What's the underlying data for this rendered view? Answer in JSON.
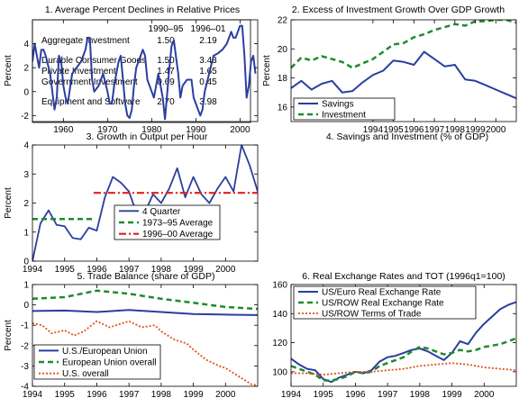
{
  "colors": {
    "blue": "#2b3ea0",
    "green": "#1f8a2e",
    "red": "#e0201b",
    "orange": "#e0501b"
  },
  "table_panel": {
    "title": "1. Average Percent Declines in Relative Prices",
    "col_headers": [
      "1990–95",
      "1996–01"
    ],
    "rows": [
      {
        "label": "Aggregate Investment",
        "values": [
          "1.50",
          "2.19"
        ]
      },
      {
        "label": "Durable Consumer Goods",
        "values": [
          "1.50",
          "3.43"
        ]
      },
      {
        "label": "Private Investment",
        "values": [
          "1.47",
          "1.65"
        ]
      },
      {
        "label": "Government Investment",
        "values": [
          "0.69",
          "0.45"
        ]
      },
      {
        "label": "Equipment and Software",
        "values": [
          "2.70",
          "3.98"
        ]
      }
    ]
  },
  "chart_data": [
    {
      "type": "table",
      "title": "1. Average Percent Declines in Relative Prices",
      "columns": [
        "",
        "1990–95",
        "1996–01"
      ],
      "rows": [
        [
          "Aggregate Investment",
          "1.50",
          "2.19"
        ],
        [
          "Durable Consumer Goods",
          "1.50",
          "3.43"
        ],
        [
          "Private Investment",
          "1.47",
          "1.65"
        ],
        [
          "Government Investment",
          "0.69",
          "0.45"
        ],
        [
          "Equipment and Software",
          "2.70",
          "3.98"
        ]
      ]
    },
    {
      "type": "line",
      "title": "2. Excess of Investment Growth Over GDP Growth",
      "xlabel": "",
      "ylabel": "Percent",
      "xlim": [
        1953,
        2004
      ],
      "ylim": [
        -2.5,
        6
      ],
      "xticks": [
        "1960",
        "1970",
        "1980",
        "1990",
        "2000"
      ],
      "yticks": [
        "-2",
        "0",
        "2",
        "4"
      ],
      "series": [
        {
          "x": [
            1953.0,
            1953.5,
            1954.0,
            1954.5,
            1955.0,
            1955.5,
            1956.0,
            1957.0,
            1957.5,
            1958.0,
            1958.5,
            1959.0,
            1959.5,
            1960.0,
            1960.5,
            1961.0,
            1962.0,
            1962.5,
            1963.0,
            1964.0,
            1964.5,
            1965.0,
            1965.5,
            1966.0,
            1966.5,
            1967.0,
            1968.0,
            1969.0,
            1970.0,
            1970.5,
            1971.0,
            1971.5,
            1972.0,
            1972.5,
            1973.0,
            1973.5,
            1974.0,
            1974.5,
            1975.0,
            1975.5,
            1976.0,
            1976.5,
            1977.0,
            1977.5,
            1978.0,
            1978.5,
            1979.0,
            1980.0,
            1980.5,
            1981.0,
            1981.5,
            1982.0,
            1982.5,
            1983.0,
            1984.0,
            1984.5,
            1985.0,
            1986.0,
            1986.5,
            1987.0,
            1988.0,
            1989.0,
            1989.5,
            1990.0,
            1990.5,
            1991.0,
            1991.5,
            1992.0,
            1993.0,
            1994.0,
            1995.0,
            1996.0,
            1997.0,
            1998.0,
            1998.5,
            1999.0,
            2000.0,
            2000.5,
            2001.0,
            2001.5,
            2002.0,
            2002.5,
            2003.0,
            2003.5
          ],
          "values": [
            2.5,
            4.0,
            3.0,
            2.0,
            3.5,
            3.5,
            3.0,
            1.5,
            0.0,
            -1.5,
            -0.5,
            3.0,
            2.5,
            0.5,
            -0.5,
            -1.0,
            1.5,
            1.8,
            2.0,
            2.5,
            3.0,
            3.5,
            4.5,
            4.5,
            1.0,
            0.0,
            0.5,
            1.5,
            0.0,
            -1.0,
            -1.0,
            0.5,
            1.5,
            2.5,
            3.0,
            1.0,
            -1.0,
            -2.0,
            -2.2,
            -1.5,
            0.5,
            2.0,
            2.5,
            3.0,
            3.5,
            3.0,
            1.0,
            0.0,
            -0.5,
            0.5,
            1.5,
            0.5,
            -0.5,
            -2.3,
            2.0,
            3.8,
            4.3,
            1.5,
            -0.5,
            0.5,
            1.0,
            1.0,
            -0.5,
            -1.0,
            -1.5,
            -2.0,
            -1.5,
            0.0,
            1.5,
            3.0,
            3.2,
            3.5,
            4.0,
            5.0,
            4.5,
            4.5,
            5.5,
            5.5,
            3.0,
            -0.5,
            0.5,
            2.5,
            3.0,
            1.5
          ]
        }
      ]
    },
    {
      "type": "line",
      "title": "3. Growth in Output per Hour",
      "xlabel": "",
      "ylabel": "Percent",
      "xlim": [
        1994,
        2001
      ],
      "ylim": [
        0,
        4
      ],
      "xticks": [
        "1994",
        "1995",
        "1996",
        "1997",
        "1998",
        "1999",
        "2000"
      ],
      "yticks": [
        "0",
        "1",
        "2",
        "3",
        "4"
      ],
      "legend": "bottom-right",
      "series": [
        {
          "name": "4 Quarter",
          "x": [
            1994.0,
            1994.25,
            1994.5,
            1994.75,
            1995.0,
            1995.25,
            1995.5,
            1995.75,
            1996.0,
            1996.25,
            1996.5,
            1996.75,
            1997.0,
            1997.25,
            1997.5,
            1997.75,
            1998.0,
            1998.25,
            1998.5,
            1998.75,
            1999.0,
            1999.25,
            1999.5,
            1999.75,
            2000.0,
            2000.25,
            2000.5,
            2000.75,
            2001.0
          ],
          "values": [
            0.0,
            1.3,
            1.75,
            1.25,
            1.2,
            0.8,
            0.75,
            1.15,
            1.05,
            2.2,
            2.9,
            2.7,
            2.4,
            1.6,
            1.7,
            2.3,
            2.0,
            2.5,
            3.2,
            2.2,
            2.9,
            2.3,
            2.0,
            2.5,
            2.9,
            2.4,
            4.0,
            3.3,
            2.4
          ]
        },
        {
          "name": "1973–95 Average",
          "x": [
            1994.0,
            1995.9
          ],
          "values": [
            1.45,
            1.45
          ]
        },
        {
          "name": "1996–00 Average",
          "x": [
            1995.9,
            2001.0
          ],
          "values": [
            2.35,
            2.35
          ]
        }
      ]
    },
    {
      "type": "line",
      "title": "4. Savings and Investment (% of GDP)",
      "xlabel": "",
      "ylabel": "Percent",
      "xlim": [
        1990,
        2001
      ],
      "ylim": [
        15,
        22
      ],
      "xticks": [
        "1994",
        "1995",
        "1996",
        "1997",
        "1998",
        "1999",
        "2000"
      ],
      "yticks": [
        "16",
        "18",
        "20",
        "22"
      ],
      "legend": "bottom-left",
      "series": [
        {
          "name": "Savings",
          "x": [
            1990,
            1990.5,
            1991,
            1991.5,
            1992,
            1992.5,
            1993,
            1993.5,
            1994,
            1994.5,
            1995,
            1995.5,
            1996,
            1996.5,
            1997,
            1997.5,
            1998,
            1998.5,
            1999,
            1999.5,
            2000,
            2000.5,
            2001
          ],
          "values": [
            17.3,
            17.8,
            17.2,
            17.6,
            17.8,
            17.0,
            17.1,
            17.7,
            18.2,
            18.5,
            19.2,
            19.1,
            18.9,
            19.8,
            19.3,
            18.8,
            18.9,
            17.9,
            17.8,
            17.5,
            17.2,
            16.9,
            16.6
          ]
        },
        {
          "name": "Investment",
          "x": [
            1990,
            1990.5,
            1991,
            1991.5,
            1992,
            1992.5,
            1993,
            1993.5,
            1994,
            1994.5,
            1995,
            1995.5,
            1996,
            1996.5,
            1997,
            1997.5,
            1998,
            1998.5,
            1999,
            1999.5,
            2000,
            2000.5,
            2001
          ],
          "values": [
            18.7,
            19.4,
            19.2,
            19.5,
            19.3,
            19.1,
            18.7,
            19.0,
            19.3,
            19.8,
            20.3,
            20.4,
            20.8,
            21.0,
            21.3,
            21.5,
            21.7,
            21.6,
            21.9,
            21.9,
            22.0,
            22.0,
            21.8
          ]
        }
      ]
    },
    {
      "type": "line",
      "title": "5. Trade Balance (share of GDP)",
      "xlabel": "",
      "ylabel": "Percent",
      "xlim": [
        1994,
        2001
      ],
      "ylim": [
        -4,
        1
      ],
      "xticks": [
        "1994",
        "1995",
        "1996",
        "1997",
        "1998",
        "1999",
        "2000"
      ],
      "yticks": [
        "-4",
        "-3",
        "-2",
        "-1",
        "0",
        "1"
      ],
      "legend": "bottom-left",
      "series": [
        {
          "name": "U.S./European Union",
          "x": [
            1994,
            1995,
            1996,
            1997,
            1998,
            1999,
            2000,
            2001
          ],
          "values": [
            -0.3,
            -0.28,
            -0.35,
            -0.25,
            -0.35,
            -0.45,
            -0.48,
            -0.5
          ]
        },
        {
          "name": "European Union overall",
          "x": [
            1994,
            1995,
            1996,
            1997,
            1998,
            1999,
            2000,
            2001
          ],
          "values": [
            0.3,
            0.38,
            0.7,
            0.55,
            0.3,
            0.1,
            -0.1,
            -0.2
          ]
        },
        {
          "name": "U.S. overall",
          "x": [
            1994,
            1994.3,
            1994.6,
            1995,
            1995.3,
            1995.6,
            1996,
            1996.4,
            1996.8,
            1997,
            1997.4,
            1997.8,
            1998,
            1998.4,
            1998.8,
            1999,
            1999.4,
            1999.8,
            2000,
            2000.4,
            2000.8,
            2001
          ],
          "values": [
            -0.9,
            -1.0,
            -1.4,
            -1.25,
            -1.5,
            -1.3,
            -0.8,
            -1.1,
            -0.9,
            -0.8,
            -1.1,
            -1.0,
            -1.3,
            -1.7,
            -1.9,
            -2.2,
            -2.7,
            -3.0,
            -3.1,
            -3.5,
            -3.9,
            -3.95
          ]
        }
      ]
    },
    {
      "type": "line",
      "title": "6. Real Exchange Rates and TOT (1996q1=100)",
      "xlabel": "",
      "ylabel": "",
      "xlim": [
        1994,
        2001
      ],
      "ylim": [
        90,
        160
      ],
      "xticks": [
        "1994",
        "1995",
        "1996",
        "1997",
        "1998",
        "1999",
        "2000"
      ],
      "yticks": [
        "100",
        "120",
        "140",
        "160"
      ],
      "legend": "top-left",
      "series": [
        {
          "name": "US/Euro Real Exchange Rate",
          "x": [
            1994,
            1994.25,
            1994.5,
            1994.75,
            1995,
            1995.25,
            1995.5,
            1995.75,
            1996,
            1996.25,
            1996.5,
            1996.75,
            1997,
            1997.25,
            1997.5,
            1997.75,
            1998,
            1998.25,
            1998.5,
            1998.75,
            1999,
            1999.25,
            1999.5,
            1999.75,
            2000,
            2000.25,
            2000.5,
            2000.75,
            2001
          ],
          "values": [
            109,
            105,
            102,
            101,
            95,
            93,
            96,
            98,
            100,
            99,
            101,
            107,
            110,
            111,
            113,
            115,
            116,
            114,
            111,
            108,
            113,
            121,
            119,
            127,
            133,
            138,
            143,
            146,
            148
          ]
        },
        {
          "name": "US/ROW Real Exchange Rate",
          "x": [
            1994,
            1994.25,
            1994.5,
            1994.75,
            1995,
            1995.25,
            1995.5,
            1995.75,
            1996,
            1996.25,
            1996.5,
            1996.75,
            1997,
            1997.25,
            1997.5,
            1997.75,
            1998,
            1998.25,
            1998.5,
            1998.75,
            1999,
            1999.25,
            1999.5,
            1999.75,
            2000,
            2000.25,
            2000.5,
            2000.75,
            2001
          ],
          "values": [
            104,
            102,
            100,
            98,
            94,
            94,
            95,
            97,
            100,
            99,
            100,
            104,
            106,
            108,
            110,
            114,
            117,
            116,
            114,
            112,
            113,
            115,
            114,
            115,
            117,
            118,
            119,
            121,
            123
          ]
        },
        {
          "name": "US/ROW Terms of Trade",
          "x": [
            1994,
            1994.5,
            1995,
            1995.5,
            1996,
            1996.5,
            1997,
            1997.5,
            1998,
            1998.5,
            1999,
            1999.5,
            2000,
            2000.5,
            2001
          ],
          "values": [
            99,
            99,
            98,
            99,
            100,
            100,
            101,
            102,
            104,
            105,
            106,
            105,
            103,
            102,
            101
          ]
        }
      ]
    }
  ]
}
